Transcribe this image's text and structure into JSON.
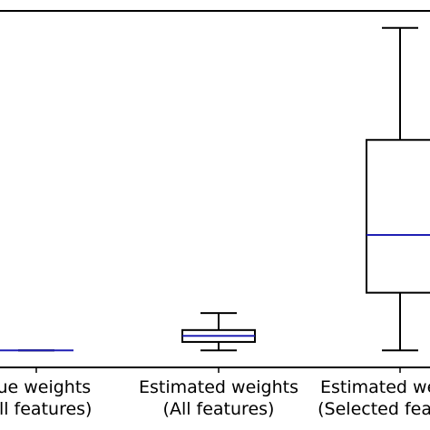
{
  "chart_data": {
    "type": "box",
    "title": "",
    "xlabel": "",
    "ylabel": "",
    "grid": false,
    "legend": "none",
    "ylim": [
      -0.05,
      1.0
    ],
    "categories": [
      {
        "line1": "True weights",
        "line2": "(All features)"
      },
      {
        "line1": "Estimated weights",
        "line2": "(All features)"
      },
      {
        "line1": "Estimated weights",
        "line2": "(Selected features)"
      }
    ],
    "boxes": [
      {
        "whisker_low": 0.0,
        "q1": 0.0,
        "median": 0.0,
        "q3": 0.0,
        "whisker_high": 0.0
      },
      {
        "whisker_low": 0.0,
        "q1": 0.025,
        "median": 0.043,
        "q3": 0.06,
        "whisker_high": 0.11
      },
      {
        "whisker_low": 0.0,
        "q1": 0.17,
        "median": 0.34,
        "q3": 0.62,
        "whisker_high": 0.95
      }
    ]
  },
  "colors": {
    "median": "#1f1fb4",
    "box_edge": "#000000",
    "background": "#ffffff"
  }
}
